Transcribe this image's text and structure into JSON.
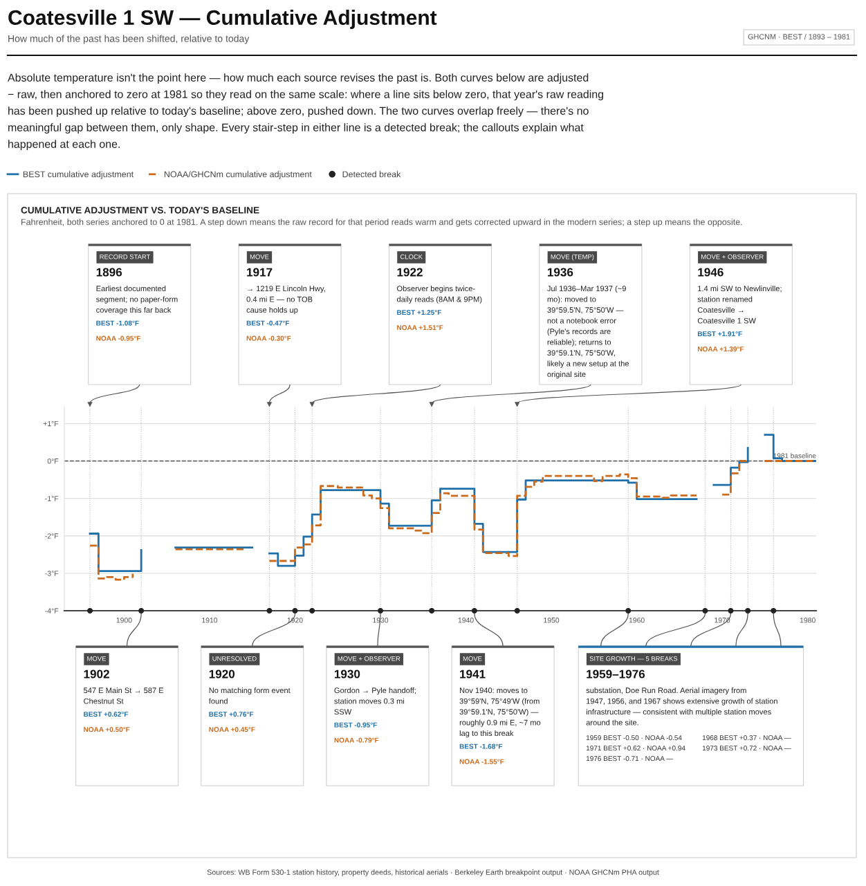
{
  "chart_data": {
    "type": "step",
    "title": "Coatesville 1 SW — Cumulative Adjustment",
    "subtitle": "How much of the past has been shifted, relative to today",
    "xlim": [
      1893,
      1981
    ],
    "ylim": [
      -4,
      1.45
    ],
    "xticks": [
      1900,
      1910,
      1920,
      1930,
      1940,
      1950,
      1960,
      1970,
      1980
    ],
    "yticks": [
      {
        "value": 1,
        "label": "+1°F"
      },
      {
        "value": 0,
        "label": "0°F"
      },
      {
        "value": -1,
        "label": "-1°F"
      },
      {
        "value": -2,
        "label": "-2°F"
      },
      {
        "value": -3,
        "label": "-3°F"
      },
      {
        "value": -4,
        "label": "-4°F"
      }
    ],
    "grid": "y",
    "legend": "top left",
    "series": [
      {
        "name": "BEST cumulative adjustment",
        "color": "#1f6fa8",
        "x": [
          1896,
          1897,
          1902,
          1903,
          1906,
          1915,
          1916,
          1917,
          1918,
          1920,
          1921,
          1922,
          1923,
          1930,
          1931,
          1936,
          1937,
          1941,
          1942,
          1946,
          1947,
          1959,
          1960,
          1967,
          1968,
          1969,
          1971,
          1972,
          1973,
          1974,
          1975,
          1976,
          1977,
          1981
        ],
        "values": [
          -1.94,
          -2.94,
          -2.38,
          null,
          -2.31,
          -2.31,
          null,
          -2.47,
          -2.8,
          -2.53,
          -2.02,
          -1.43,
          -0.78,
          -1.14,
          -1.73,
          -1.05,
          -0.74,
          -1.68,
          -2.43,
          -1.03,
          -0.52,
          -0.58,
          -1.02,
          -1.02,
          null,
          -0.64,
          -0.18,
          -0.03,
          0.35,
          null,
          0.7,
          0.07,
          0,
          0
        ]
      },
      {
        "name": "NOAA/GHCNm cumulative adjustment",
        "color": "#cc6a1c",
        "line_style": "dashed",
        "x": [
          1896,
          1897,
          1898,
          1899,
          1900,
          1901,
          1902,
          1906,
          1914,
          1915,
          1917,
          1920,
          1921,
          1922,
          1923,
          1925,
          1928,
          1929,
          1930,
          1931,
          1934,
          1935,
          1936,
          1937,
          1938,
          1941,
          1942,
          1945,
          1946,
          1947,
          1948,
          1949,
          1955,
          1956,
          1958,
          1959,
          1960,
          1963,
          1964,
          1967,
          1968,
          1970,
          1971,
          1972,
          1973,
          1974,
          1975,
          1981
        ],
        "values": [
          -2.26,
          -3.14,
          -3.1,
          -3.17,
          -3.1,
          -3.01,
          null,
          -2.36,
          -2.36,
          null,
          -2.67,
          -2.31,
          -2.23,
          -1.72,
          -0.67,
          -0.71,
          -0.92,
          -1.0,
          -1.26,
          -1.8,
          -1.86,
          -1.93,
          -1.39,
          -0.86,
          -0.93,
          -1.83,
          -2.46,
          -2.54,
          -0.93,
          -0.69,
          -0.55,
          -0.4,
          -0.54,
          -0.4,
          -0.36,
          -0.46,
          -0.95,
          -0.98,
          -0.92,
          -0.92,
          null,
          -0.9,
          -0.33,
          0,
          0,
          null,
          0,
          0
        ]
      },
      {
        "name": "Detected break",
        "type": "scatter",
        "color": "#222222",
        "marker": "circle",
        "x": [
          1896,
          1902,
          1917,
          1920,
          1922,
          1930,
          1936,
          1941,
          1946,
          1959,
          1968,
          1971,
          1973,
          1976
        ],
        "values": [
          -4,
          -4,
          -4,
          -4,
          -4,
          -4,
          -4,
          -4,
          -4,
          -4,
          -4,
          -4,
          -4,
          -4
        ]
      }
    ],
    "ref_lines": [
      {
        "axis": "y",
        "value": 0,
        "label": "1981 baseline",
        "color": "#555555",
        "line_style": "dashed"
      },
      {
        "axis": "x",
        "value": 1896,
        "color": "#bbbbbb",
        "line_style": "dotted"
      },
      {
        "axis": "x",
        "value": 1902,
        "color": "#bbbbbb",
        "line_style": "dotted"
      },
      {
        "axis": "x",
        "value": 1917,
        "color": "#bbbbbb",
        "line_style": "dotted"
      },
      {
        "axis": "x",
        "value": 1920,
        "color": "#bbbbbb",
        "line_style": "dotted"
      },
      {
        "axis": "x",
        "value": 1922,
        "color": "#bbbbbb",
        "line_style": "dotted"
      },
      {
        "axis": "x",
        "value": 1930,
        "color": "#bbbbbb",
        "line_style": "dotted"
      },
      {
        "axis": "x",
        "value": 1936,
        "color": "#bbbbbb",
        "line_style": "dotted"
      },
      {
        "axis": "x",
        "value": 1941,
        "color": "#bbbbbb",
        "line_style": "dotted"
      },
      {
        "axis": "x",
        "value": 1946,
        "color": "#bbbbbb",
        "line_style": "dotted"
      },
      {
        "axis": "x",
        "value": 1959,
        "color": "#bbbbbb",
        "line_style": "dotted"
      },
      {
        "axis": "x",
        "value": 1968,
        "color": "#bbbbbb",
        "line_style": "dotted"
      },
      {
        "axis": "x",
        "value": 1971,
        "color": "#bbbbbb",
        "line_style": "dotted"
      },
      {
        "axis": "x",
        "value": 1973,
        "color": "#bbbbbb",
        "line_style": "dotted"
      },
      {
        "axis": "x",
        "value": 1976,
        "color": "#bbbbbb",
        "line_style": "dotted"
      }
    ],
    "annotations": [
      "GHCNM · BEST / 1893 – 1981",
      "Absolute temperature isn't the point here — how much each source revises the past is. Both curves below are adjusted\n− raw, then anchored to zero at 1981 so they read on the same scale: where a line sits below zero, that year's raw reading\nhas been pushed up relative to today's baseline; above zero, pushed down. The two curves overlap freely — there's no\nmeaningful gap between them, only shape. Every stair-step in either line is a detected break; the callouts explain what\nhappened at each one.",
      "CUMULATIVE ADJUSTMENT VS. TODAY'S BASELINE",
      "Fahrenheit, both series anchored to 0 at 1981. A step down means the raw record for that period reads warm and gets corrected upward in the modern series; a step up means the opposite.",
      "RECORD START\n\n1896\n\nEarliest documented\nsegment; no paper-form\ncoverage this far back\n\nBEST -1.08°F\n\nNOAA -0.95°F",
      "MOVE\n\n1902\n\n547 E Main St → 587 E\nChestnut St\n\nBEST +0.62°F\n\nNOAA +0.50°F",
      "MOVE\n\n1917\n\n→ 1219 E Lincoln Hwy,\n0.4 mi E — no TOB\ncause holds up\n\nBEST -0.47°F\n\nNOAA -0.30°F",
      "UNRESOLVED\n\n1920\n\nNo matching form event\nfound\n\nBEST +0.76°F\n\nNOAA +0.45°F",
      "CLOCK\n\n1922\n\nObserver begins twice-\ndaily reads (8AM & 9PM)\n\nBEST +1.25°F\n\nNOAA +1.51°F",
      "MOVE + OBSERVER\n\n1930\n\nGordon → Pyle handoff;\nstation moves 0.3 mi\nSSW\n\nBEST -0.95°F\n\nNOAA -0.79°F",
      "MOVE (TEMP)\n\n1936\n\nJul 1936–Mar 1937 (~9\nmo): moved to\n39°59.5'N, 75°50'W —\nnot a notebook error\n(Pyle's records are\nreliable); returns to\n39°59.1'N, 75°50'W,\nlikely a new setup at the\noriginal site",
      "MOVE\n\n1941\n\nNov 1940: moves to\n39°59'N, 75°49'W (from\n39°59.1'N, 75°50'W) —\nroughly 0.9 mi E, ~7 mo\nlag to this break\n\nBEST -1.68°F\n\nNOAA -1.55°F",
      "MOVE + OBSERVER\n\n1946\n\n1.4 mi SW to Newlinville;\nstation renamed\nCoatesville →\nCoatesville 1 SW\n\nBEST +1.91°F\n\nNOAA +1.39°F",
      "SITE GROWTH — 5 BREAKS\n\n1959–1976\n\nsubstation, Doe Run Road. Aerial imagery from\n1947, 1956, and 1967 shows extensive growth of station\ninfrastructure — consistent with multiple station moves\naround the site.",
      "1959 BEST -0.50 · NOAA -0.54",
      "1968 BEST +0.37 · NOAA —",
      "1971 BEST +0.62 · NOAA +0.94",
      "1973 BEST +0.72 · NOAA —",
      "1976 BEST -0.71 · NOAA —",
      "Sources: WB Form 530-1 station history, property deeds, historical aerials · Berkeley Earth breakpoint output · NOAA GHCNm PHA output"
    ]
  }
}
